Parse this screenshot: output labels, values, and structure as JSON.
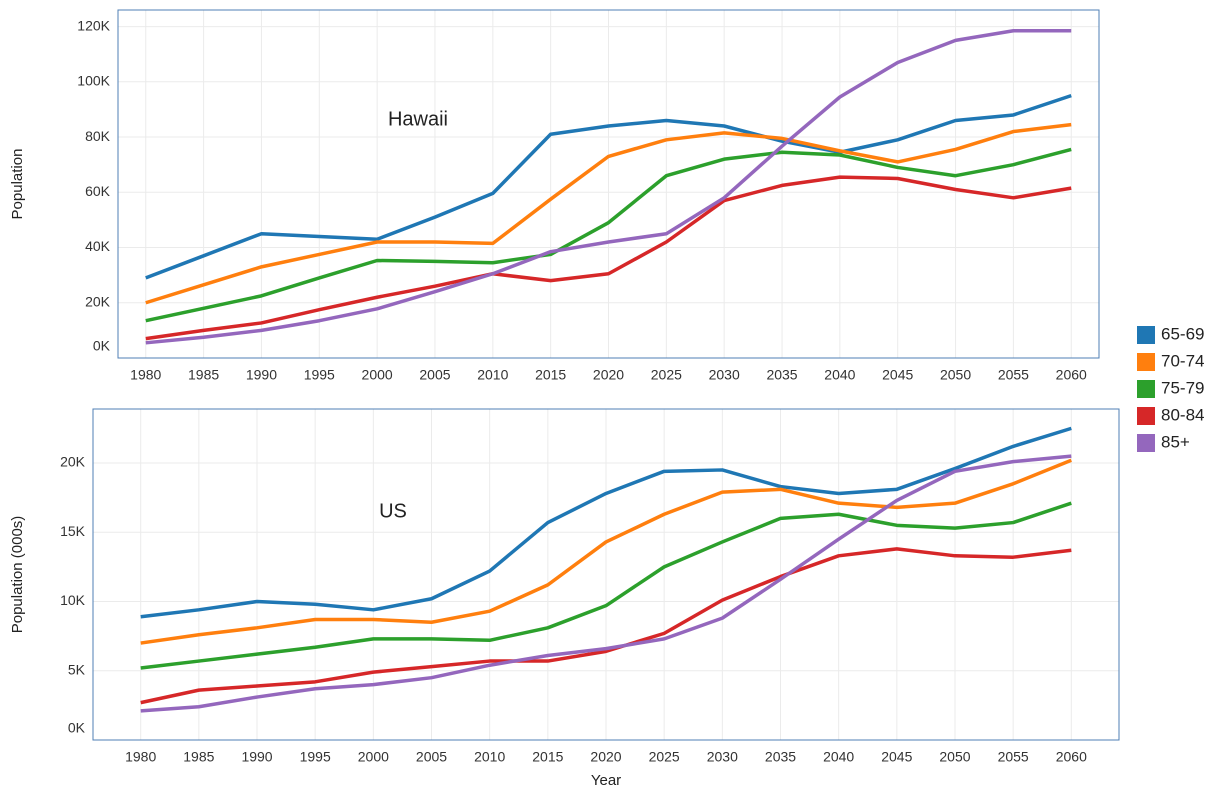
{
  "chart_data": [
    {
      "type": "line",
      "y_label": "Population",
      "annotation": "Hawaii",
      "x": [
        1980,
        1985,
        1990,
        1995,
        2000,
        2005,
        2010,
        2015,
        2020,
        2025,
        2030,
        2035,
        2040,
        2045,
        2050,
        2055,
        2060
      ],
      "xlim": [
        1977.6,
        2062.4
      ],
      "xticks": [
        1980,
        1985,
        1990,
        1995,
        2000,
        2005,
        2010,
        2015,
        2020,
        2025,
        2030,
        2035,
        2040,
        2045,
        2050,
        2055,
        2060
      ],
      "ylim": [
        0,
        126000
      ],
      "yticks": [
        {
          "value": 0,
          "label": "0K"
        },
        {
          "value": 20000,
          "label": "20K"
        },
        {
          "value": 40000,
          "label": "40K"
        },
        {
          "value": 60000,
          "label": "60K"
        },
        {
          "value": 80000,
          "label": "80K"
        },
        {
          "value": 100000,
          "label": "100K"
        },
        {
          "value": 120000,
          "label": "120K"
        }
      ],
      "grid": true,
      "series": [
        {
          "name": "65-69",
          "color": "#1f77b4",
          "values": [
            29000,
            37000,
            45000,
            44000,
            43000,
            51000,
            59600,
            81000,
            84000,
            86000,
            84000,
            78500,
            74500,
            79000,
            86000,
            88000,
            95000
          ]
        },
        {
          "name": "70-74",
          "color": "#ff7f0e",
          "values": [
            20000,
            26500,
            33000,
            37500,
            42000,
            42000,
            41500,
            57500,
            73000,
            79000,
            81500,
            79500,
            75000,
            71000,
            75500,
            82000,
            84500
          ]
        },
        {
          "name": "75-79",
          "color": "#2ca02c",
          "values": [
            13500,
            18000,
            22500,
            29000,
            35300,
            35000,
            34500,
            37500,
            49000,
            66000,
            72000,
            74500,
            73500,
            69000,
            66000,
            70000,
            75500
          ]
        },
        {
          "name": "80-84",
          "color": "#d62728",
          "values": [
            7000,
            10000,
            12700,
            17500,
            22000,
            26000,
            30500,
            28000,
            30500,
            42000,
            57000,
            62500,
            65500,
            65000,
            61000,
            58000,
            61500
          ]
        },
        {
          "name": "85+",
          "color": "#9467bd",
          "values": [
            5500,
            7500,
            10000,
            13500,
            17800,
            24000,
            30500,
            38500,
            42000,
            45000,
            58000,
            76700,
            94500,
            107000,
            115000,
            118500,
            118500
          ]
        }
      ]
    },
    {
      "type": "line",
      "y_label": "Population (000s)",
      "x_label": "Year",
      "annotation": "US",
      "x": [
        1980,
        1985,
        1990,
        1995,
        2000,
        2005,
        2010,
        2015,
        2020,
        2025,
        2030,
        2035,
        2040,
        2045,
        2050,
        2055,
        2060
      ],
      "xlim": [
        1975.9,
        2064.1
      ],
      "xticks": [
        1980,
        1985,
        1990,
        1995,
        2000,
        2005,
        2010,
        2015,
        2020,
        2025,
        2030,
        2035,
        2040,
        2045,
        2050,
        2055,
        2060
      ],
      "ylim": [
        0,
        23900
      ],
      "yticks": [
        {
          "value": 0,
          "label": "0K"
        },
        {
          "value": 5000,
          "label": "5K"
        },
        {
          "value": 10000,
          "label": "10K"
        },
        {
          "value": 15000,
          "label": "15K"
        },
        {
          "value": 20000,
          "label": "20K"
        }
      ],
      "grid": true,
      "series": [
        {
          "color": "#1f77b4",
          "values": [
            8900,
            9400,
            10000,
            9800,
            9400,
            10200,
            12200,
            15700,
            17800,
            19400,
            19500,
            18300,
            17800,
            18100,
            19600,
            21200,
            22500
          ]
        },
        {
          "color": "#ff7f0e",
          "values": [
            7000,
            7600,
            8100,
            8700,
            8700,
            8500,
            9300,
            11200,
            14300,
            16300,
            17900,
            18100,
            17100,
            16800,
            17100,
            18500,
            20200
          ]
        },
        {
          "color": "#2ca02c",
          "values": [
            5200,
            5700,
            6200,
            6700,
            7300,
            7300,
            7200,
            8100,
            9700,
            12500,
            14300,
            16000,
            16300,
            15500,
            15300,
            15700,
            17100
          ]
        },
        {
          "color": "#d62728",
          "values": [
            2700,
            3600,
            3900,
            4200,
            4900,
            5300,
            5700,
            5700,
            6400,
            7700,
            10100,
            11800,
            13300,
            13800,
            13300,
            13200,
            13700
          ]
        },
        {
          "color": "#9467bd",
          "values": [
            2100,
            2400,
            3100,
            3700,
            4000,
            4500,
            5400,
            6100,
            6600,
            7300,
            8800,
            11600,
            14500,
            17300,
            19400,
            20100,
            20500
          ]
        }
      ]
    }
  ]
}
